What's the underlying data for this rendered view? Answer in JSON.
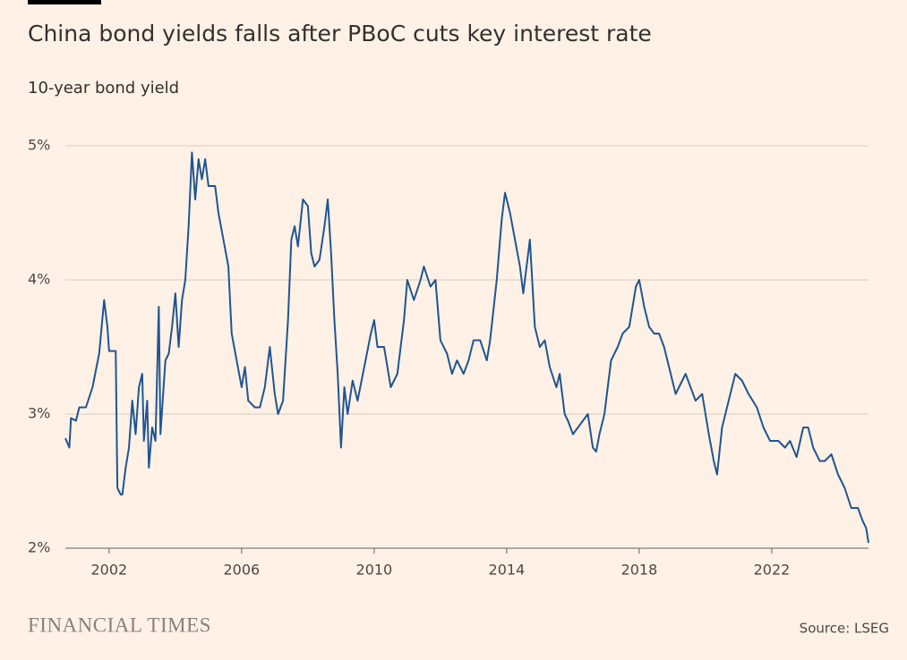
{
  "chart_data": {
    "type": "line",
    "title": "China bond yields falls after PBoC cuts key interest rate",
    "subtitle": "10-year bond yield",
    "source": "Source: LSEG",
    "brand": "FINANCIAL TIMES",
    "color": "#1f5592",
    "grid": true,
    "xlim": [
      2000.68,
      2024.92
    ],
    "xticks": [
      2002,
      2006,
      2010,
      2014,
      2018,
      2022
    ],
    "ylim": [
      2,
      5
    ],
    "yticks": [
      {
        "value": 2,
        "label": "2%"
      },
      {
        "value": 3,
        "label": "3%"
      },
      {
        "value": 4,
        "label": "4%"
      },
      {
        "value": 5,
        "label": "5%"
      }
    ],
    "x": [
      2000.68,
      2000.8,
      2000.85,
      2001.0,
      2001.1,
      2001.3,
      2001.5,
      2001.7,
      2001.85,
      2001.95,
      2002.0,
      2002.1,
      2002.2,
      2002.25,
      2002.35,
      2002.4,
      2002.5,
      2002.6,
      2002.7,
      2002.8,
      2002.9,
      2003.0,
      2003.05,
      2003.15,
      2003.2,
      2003.3,
      2003.4,
      2003.5,
      2003.55,
      2003.7,
      2003.8,
      2003.9,
      2004.0,
      2004.1,
      2004.2,
      2004.3,
      2004.4,
      2004.5,
      2004.6,
      2004.7,
      2004.8,
      2004.9,
      2005.0,
      2005.2,
      2005.3,
      2005.45,
      2005.6,
      2005.7,
      2005.85,
      2006.0,
      2006.1,
      2006.2,
      2006.4,
      2006.55,
      2006.7,
      2006.85,
      2007.0,
      2007.1,
      2007.25,
      2007.4,
      2007.5,
      2007.6,
      2007.7,
      2007.85,
      2008.0,
      2008.1,
      2008.2,
      2008.35,
      2008.5,
      2008.6,
      2008.7,
      2008.8,
      2008.9,
      2009.0,
      2009.1,
      2009.2,
      2009.35,
      2009.5,
      2009.7,
      2009.9,
      2010.0,
      2010.1,
      2010.3,
      2010.5,
      2010.7,
      2010.9,
      2011.0,
      2011.2,
      2011.4,
      2011.5,
      2011.7,
      2011.85,
      2012.0,
      2012.2,
      2012.35,
      2012.5,
      2012.7,
      2012.85,
      2013.0,
      2013.2,
      2013.4,
      2013.5,
      2013.7,
      2013.85,
      2013.95,
      2014.1,
      2014.25,
      2014.4,
      2014.5,
      2014.7,
      2014.85,
      2015.0,
      2015.15,
      2015.3,
      2015.5,
      2015.6,
      2015.75,
      2015.85,
      2016.0,
      2016.15,
      2016.3,
      2016.45,
      2016.6,
      2016.7,
      2016.8,
      2016.95,
      2017.15,
      2017.35,
      2017.5,
      2017.7,
      2017.9,
      2018.0,
      2018.15,
      2018.3,
      2018.45,
      2018.6,
      2018.75,
      2018.95,
      2019.1,
      2019.3,
      2019.4,
      2019.55,
      2019.7,
      2019.9,
      2020.1,
      2020.25,
      2020.35,
      2020.5,
      2020.65,
      2020.8,
      2020.9,
      2021.1,
      2021.3,
      2021.55,
      2021.75,
      2021.95,
      2022.2,
      2022.4,
      2022.55,
      2022.75,
      2022.95,
      2023.1,
      2023.25,
      2023.45,
      2023.6,
      2023.8,
      2024.0,
      2024.2,
      2024.4,
      2024.6,
      2024.75,
      2024.85,
      2024.92
    ],
    "values": [
      2.82,
      2.75,
      2.97,
      2.95,
      3.05,
      3.05,
      3.2,
      3.45,
      3.85,
      3.65,
      3.47,
      3.47,
      3.47,
      2.45,
      2.4,
      2.4,
      2.6,
      2.75,
      3.1,
      2.85,
      3.2,
      3.3,
      2.8,
      3.1,
      2.6,
      2.9,
      2.8,
      3.8,
      2.85,
      3.4,
      3.45,
      3.65,
      3.9,
      3.5,
      3.85,
      4.0,
      4.4,
      4.95,
      4.6,
      4.9,
      4.75,
      4.9,
      4.7,
      4.7,
      4.5,
      4.3,
      4.1,
      3.6,
      3.4,
      3.2,
      3.35,
      3.1,
      3.05,
      3.05,
      3.2,
      3.5,
      3.15,
      3.0,
      3.1,
      3.7,
      4.3,
      4.4,
      4.25,
      4.6,
      4.55,
      4.2,
      4.1,
      4.15,
      4.4,
      4.6,
      4.2,
      3.7,
      3.3,
      2.75,
      3.2,
      3.0,
      3.25,
      3.1,
      3.35,
      3.6,
      3.7,
      3.5,
      3.5,
      3.2,
      3.3,
      3.7,
      4.0,
      3.85,
      4.0,
      4.1,
      3.95,
      4.0,
      3.55,
      3.45,
      3.3,
      3.4,
      3.3,
      3.4,
      3.55,
      3.55,
      3.4,
      3.55,
      4.0,
      4.45,
      4.65,
      4.5,
      4.3,
      4.1,
      3.9,
      4.3,
      3.65,
      3.5,
      3.55,
      3.35,
      3.2,
      3.3,
      3.0,
      2.95,
      2.85,
      2.9,
      2.95,
      3.0,
      2.75,
      2.72,
      2.85,
      3.0,
      3.4,
      3.5,
      3.6,
      3.65,
      3.95,
      4.0,
      3.8,
      3.65,
      3.6,
      3.6,
      3.5,
      3.3,
      3.15,
      3.25,
      3.3,
      3.2,
      3.1,
      3.15,
      2.85,
      2.65,
      2.55,
      2.9,
      3.05,
      3.2,
      3.3,
      3.25,
      3.15,
      3.05,
      2.9,
      2.8,
      2.8,
      2.75,
      2.8,
      2.68,
      2.9,
      2.9,
      2.75,
      2.65,
      2.65,
      2.7,
      2.55,
      2.45,
      2.3,
      2.3,
      2.2,
      2.15,
      2.04
    ]
  }
}
